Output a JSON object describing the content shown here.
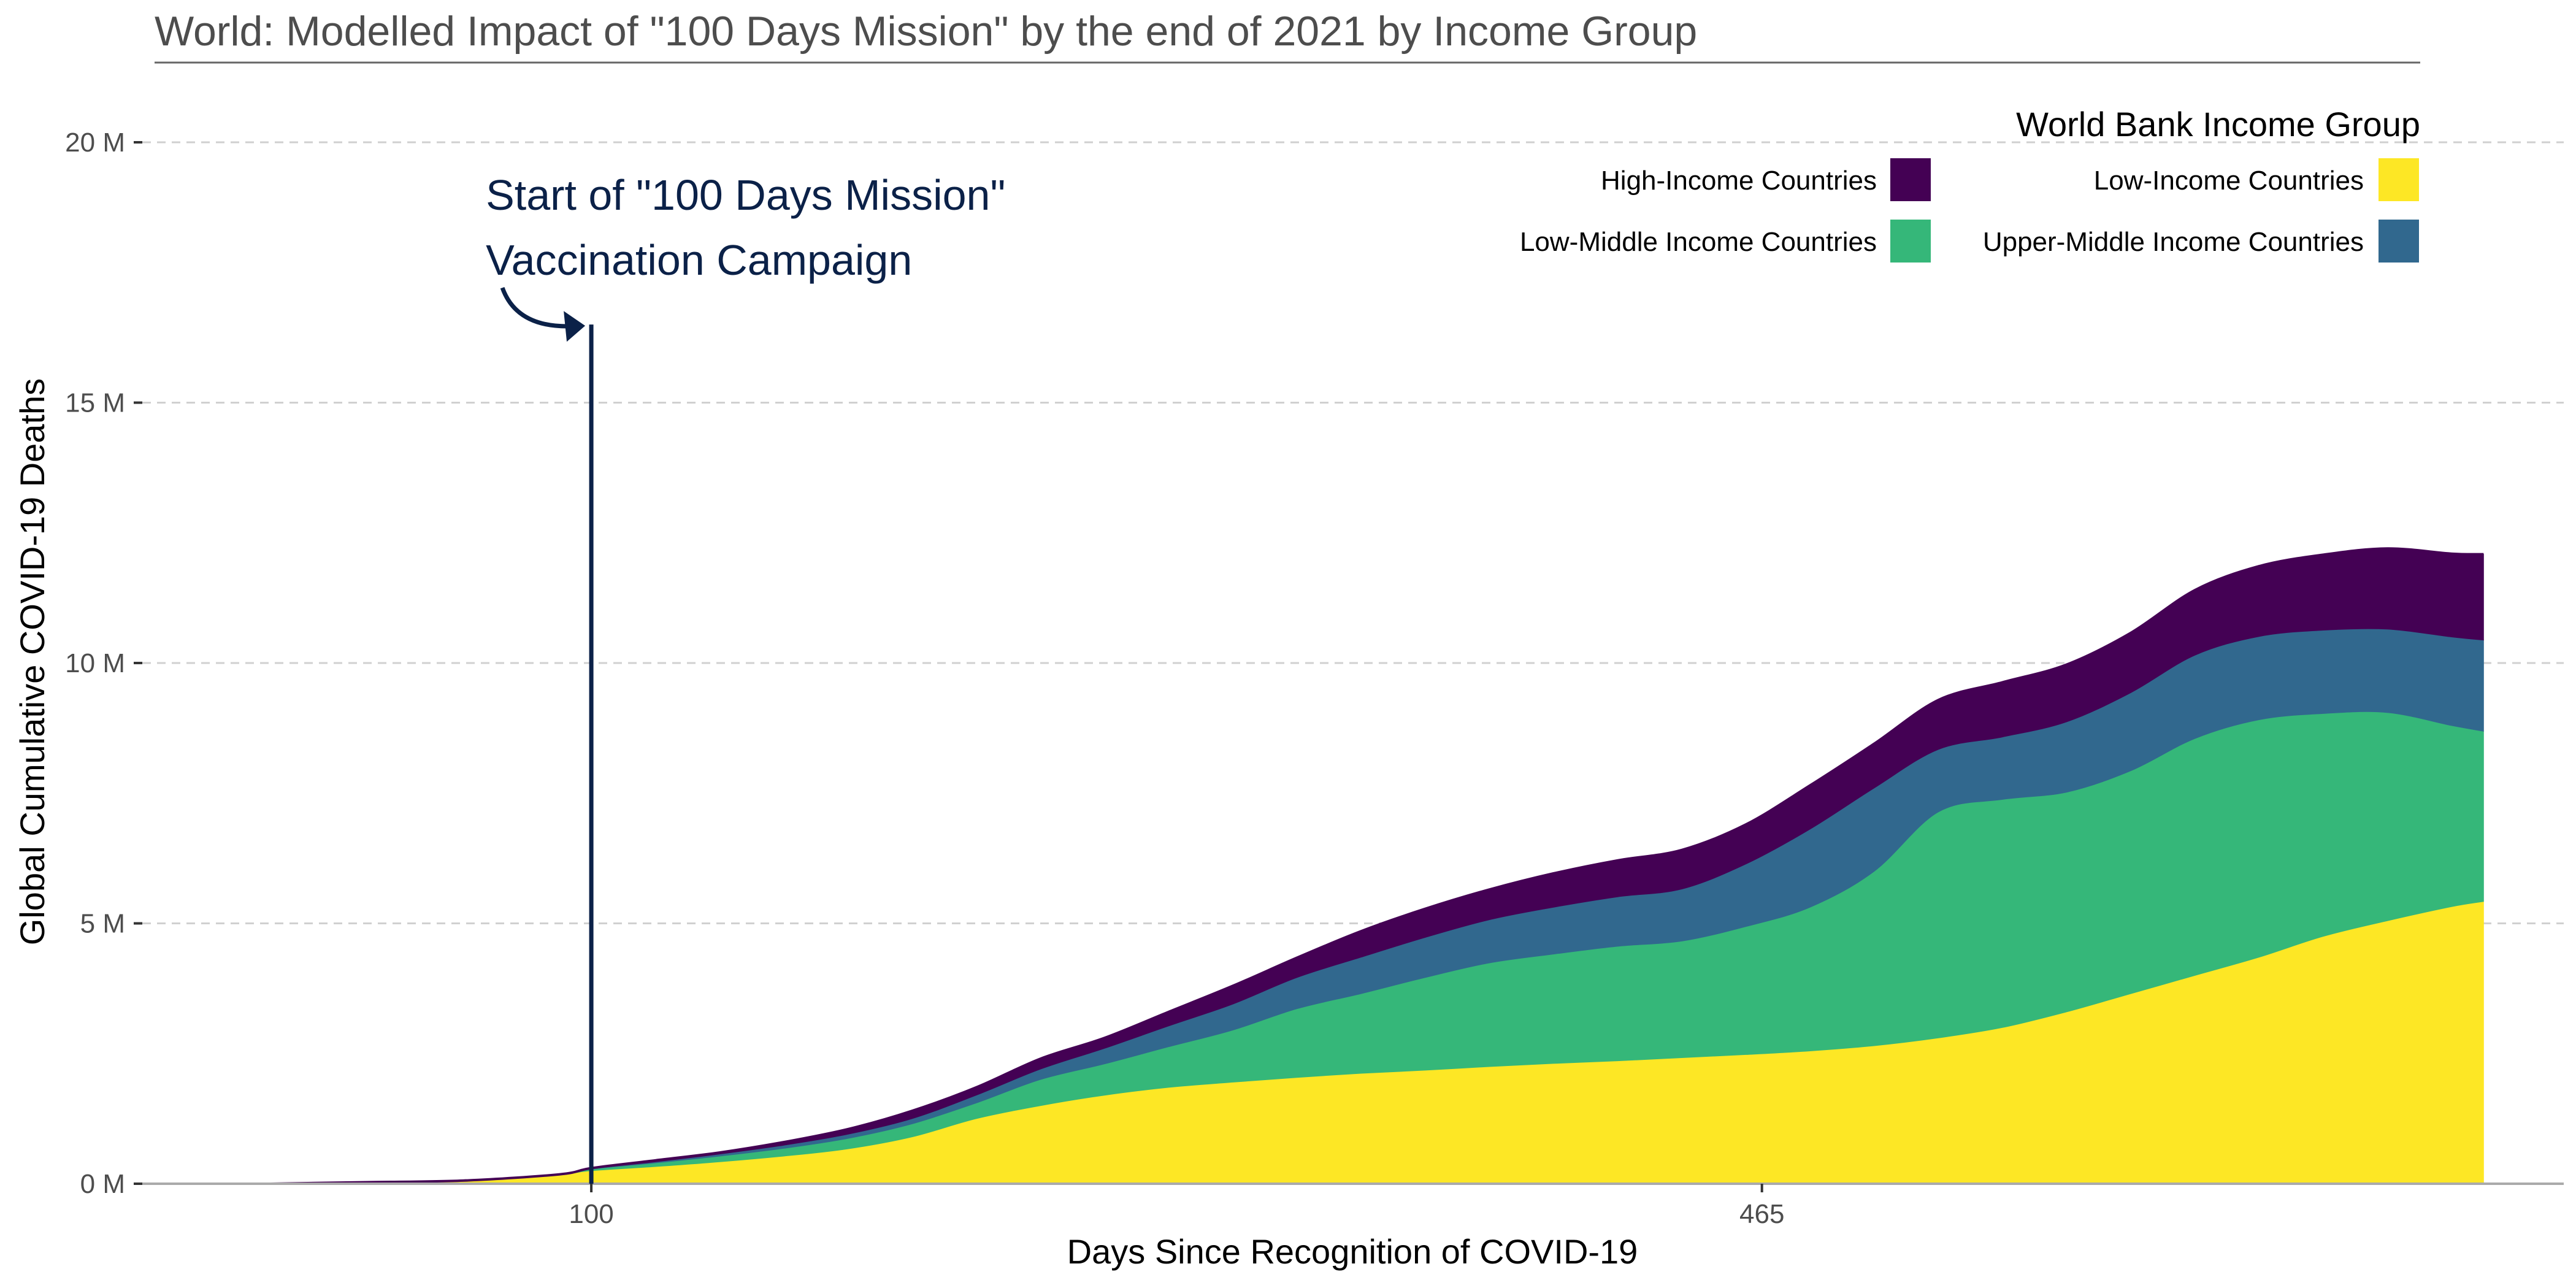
{
  "chart_data": {
    "type": "area",
    "stacked": true,
    "title": "World: Modelled Impact of \"100 Days Mission\" by the end of 2021 by Income Group",
    "xlabel": "Days Since Recognition of COVID-19",
    "ylabel": "Global Cumulative COVID-19 Deaths",
    "xlim": [
      -40,
      715
    ],
    "ylim": [
      0,
      20000000
    ],
    "x_ticks": [
      100,
      465
    ],
    "x_tick_labels": [
      "100",
      "465"
    ],
    "y_ticks": [
      0,
      5000000,
      10000000,
      15000000,
      20000000
    ],
    "y_tick_labels": [
      "0 M",
      "5 M",
      "10 M",
      "15 M",
      "20 M"
    ],
    "grid": {
      "horizontal": true,
      "vertical": false
    },
    "legend": {
      "title": "World Bank Income Group",
      "placement": "top-right",
      "entries": [
        {
          "label": "High-Income Countries",
          "color": "#440154"
        },
        {
          "label": "Low-Income Countries",
          "color": "#FDE725"
        },
        {
          "label": "Low-Middle Income Countries",
          "color": "#35B779"
        },
        {
          "label": "Upper-Middle Income Countries",
          "color": "#31688E"
        }
      ]
    },
    "annotation": {
      "lines": [
        "Start of \"100 Days Mission\"",
        "Vaccination Campaign"
      ],
      "x": 100,
      "line_top_y": 16500000,
      "color": "#0b2148"
    },
    "x": [
      0,
      30,
      60,
      90,
      100,
      120,
      140,
      160,
      180,
      200,
      220,
      240,
      260,
      280,
      300,
      320,
      340,
      360,
      380,
      400,
      420,
      440,
      460,
      480,
      500,
      520,
      540,
      560,
      580,
      600,
      620,
      640,
      660,
      680,
      690
    ],
    "stack_order": [
      "Low-Income Countries",
      "Low-Middle Income Countries",
      "Upper-Middle Income Countries",
      "High-Income Countries"
    ],
    "series": [
      {
        "name": "Low-Income Countries",
        "color": "#FDE725",
        "values": [
          0,
          30000,
          60000,
          180000,
          250000,
          330000,
          420000,
          530000,
          670000,
          900000,
          1250000,
          1500000,
          1700000,
          1850000,
          1950000,
          2040000,
          2120000,
          2180000,
          2250000,
          2310000,
          2360000,
          2420000,
          2480000,
          2550000,
          2650000,
          2800000,
          3000000,
          3300000,
          3650000,
          4000000,
          4350000,
          4750000,
          5050000,
          5320000,
          5420000
        ]
      },
      {
        "name": "Low-Middle Income Countries",
        "color": "#35B779",
        "values": [
          0,
          0,
          0,
          0,
          30000,
          70000,
          110000,
          150000,
          200000,
          250000,
          300000,
          500000,
          600000,
          780000,
          1000000,
          1320000,
          1530000,
          1780000,
          1990000,
          2100000,
          2200000,
          2240000,
          2460000,
          2760000,
          3350000,
          4340000,
          4380000,
          4220000,
          4280000,
          4550000,
          4560000,
          4280000,
          4000000,
          3480000,
          3270000
        ]
      },
      {
        "name": "Upper-Middle Income Countries",
        "color": "#31688E",
        "values": [
          0,
          0,
          0,
          0,
          10000,
          20000,
          40000,
          60000,
          80000,
          100000,
          150000,
          200000,
          300000,
          400000,
          500000,
          600000,
          700000,
          770000,
          830000,
          900000,
          950000,
          1000000,
          1200000,
          1500000,
          1600000,
          1200000,
          1200000,
          1350000,
          1500000,
          1600000,
          1600000,
          1600000,
          1600000,
          1700000,
          1750000
        ]
      },
      {
        "name": "High-Income Countries",
        "color": "#440154",
        "values": [
          0,
          0,
          0,
          0,
          10000,
          30000,
          30000,
          60000,
          100000,
          150000,
          150000,
          200000,
          200000,
          270000,
          350000,
          380000,
          500000,
          550000,
          580000,
          650000,
          700000,
          750000,
          760000,
          840000,
          850000,
          950000,
          1050000,
          1100000,
          1150000,
          1250000,
          1350000,
          1450000,
          1550000,
          1600000,
          1650000
        ]
      }
    ]
  }
}
